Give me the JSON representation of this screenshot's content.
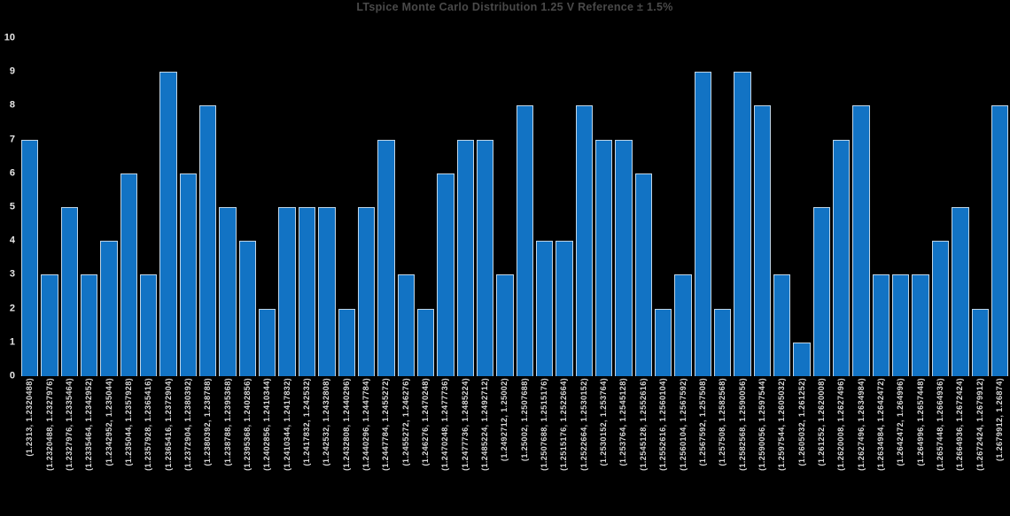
{
  "chart_data": {
    "type": "bar",
    "title": "LTspice Monte Carlo Distribution 1.25 V Reference ± 1.5%",
    "xlabel": "",
    "ylabel": "",
    "ylim": [
      0,
      10
    ],
    "yticks": [
      0,
      1,
      2,
      3,
      4,
      5,
      6,
      7,
      8,
      9,
      10
    ],
    "grid": false,
    "legend": "none",
    "background_color": "#000000",
    "bar_color": "#1273c4",
    "bar_edge_color": "#dfe6ec",
    "tick_label_color": "#d9d9d9",
    "title_color": "#4a4a4a",
    "categories": [
      "(1.2313, 1.2320488)",
      "(1.2320488, 1.2327976)",
      "(1.2327976, 1.2335464)",
      "(1.2335464, 1.2342952)",
      "(1.2342952, 1.235044)",
      "(1.235044, 1.2357928)",
      "(1.2357928, 1.2365416)",
      "(1.2365416, 1.2372904)",
      "(1.2372904, 1.2380392)",
      "(1.2380392, 1.238788)",
      "(1.238788, 1.2395368)",
      "(1.2395368, 1.2402856)",
      "(1.2402856, 1.2410344)",
      "(1.2410344, 1.2417832)",
      "(1.2417832, 1.242532)",
      "(1.242532, 1.2432808)",
      "(1.2432808, 1.2440296)",
      "(1.2440296, 1.2447784)",
      "(1.2447784, 1.2455272)",
      "(1.2455272, 1.246276)",
      "(1.246276, 1.2470248)",
      "(1.2470248, 1.2477736)",
      "(1.2477736, 1.2485224)",
      "(1.2485224, 1.2492712)",
      "(1.2492712, 1.25002)",
      "(1.25002, 1.2507688)",
      "(1.2507688, 1.2515176)",
      "(1.2515176, 1.2522664)",
      "(1.2522664, 1.2530152)",
      "(1.2530152, 1.253764)",
      "(1.253764, 1.2545128)",
      "(1.2545128, 1.2552616)",
      "(1.2552616, 1.2560104)",
      "(1.2560104, 1.2567592)",
      "(1.2567592, 1.257508)",
      "(1.257508, 1.2582568)",
      "(1.2582568, 1.2590056)",
      "(1.2590056, 1.2597544)",
      "(1.2597544, 1.2605032)",
      "(1.2605032, 1.261252)",
      "(1.261252, 1.2620008)",
      "(1.2620008, 1.2627496)",
      "(1.2627496, 1.2634984)",
      "(1.2634984, 1.2642472)",
      "(1.2642472, 1.264996)",
      "(1.264996, 1.2657448)",
      "(1.2657448, 1.2664936)",
      "(1.2664936, 1.2672424)",
      "(1.2672424, 1.2679912)",
      "(1.2679912, 1.26874)"
    ],
    "values": [
      7,
      3,
      5,
      3,
      4,
      6,
      3,
      9,
      6,
      8,
      5,
      4,
      2,
      5,
      5,
      5,
      2,
      5,
      7,
      3,
      2,
      6,
      7,
      7,
      3,
      8,
      4,
      4,
      8,
      7,
      7,
      6,
      2,
      3,
      9,
      2,
      9,
      8,
      3,
      1,
      5,
      7,
      8,
      3,
      3,
      3,
      4,
      5,
      2,
      8
    ]
  }
}
